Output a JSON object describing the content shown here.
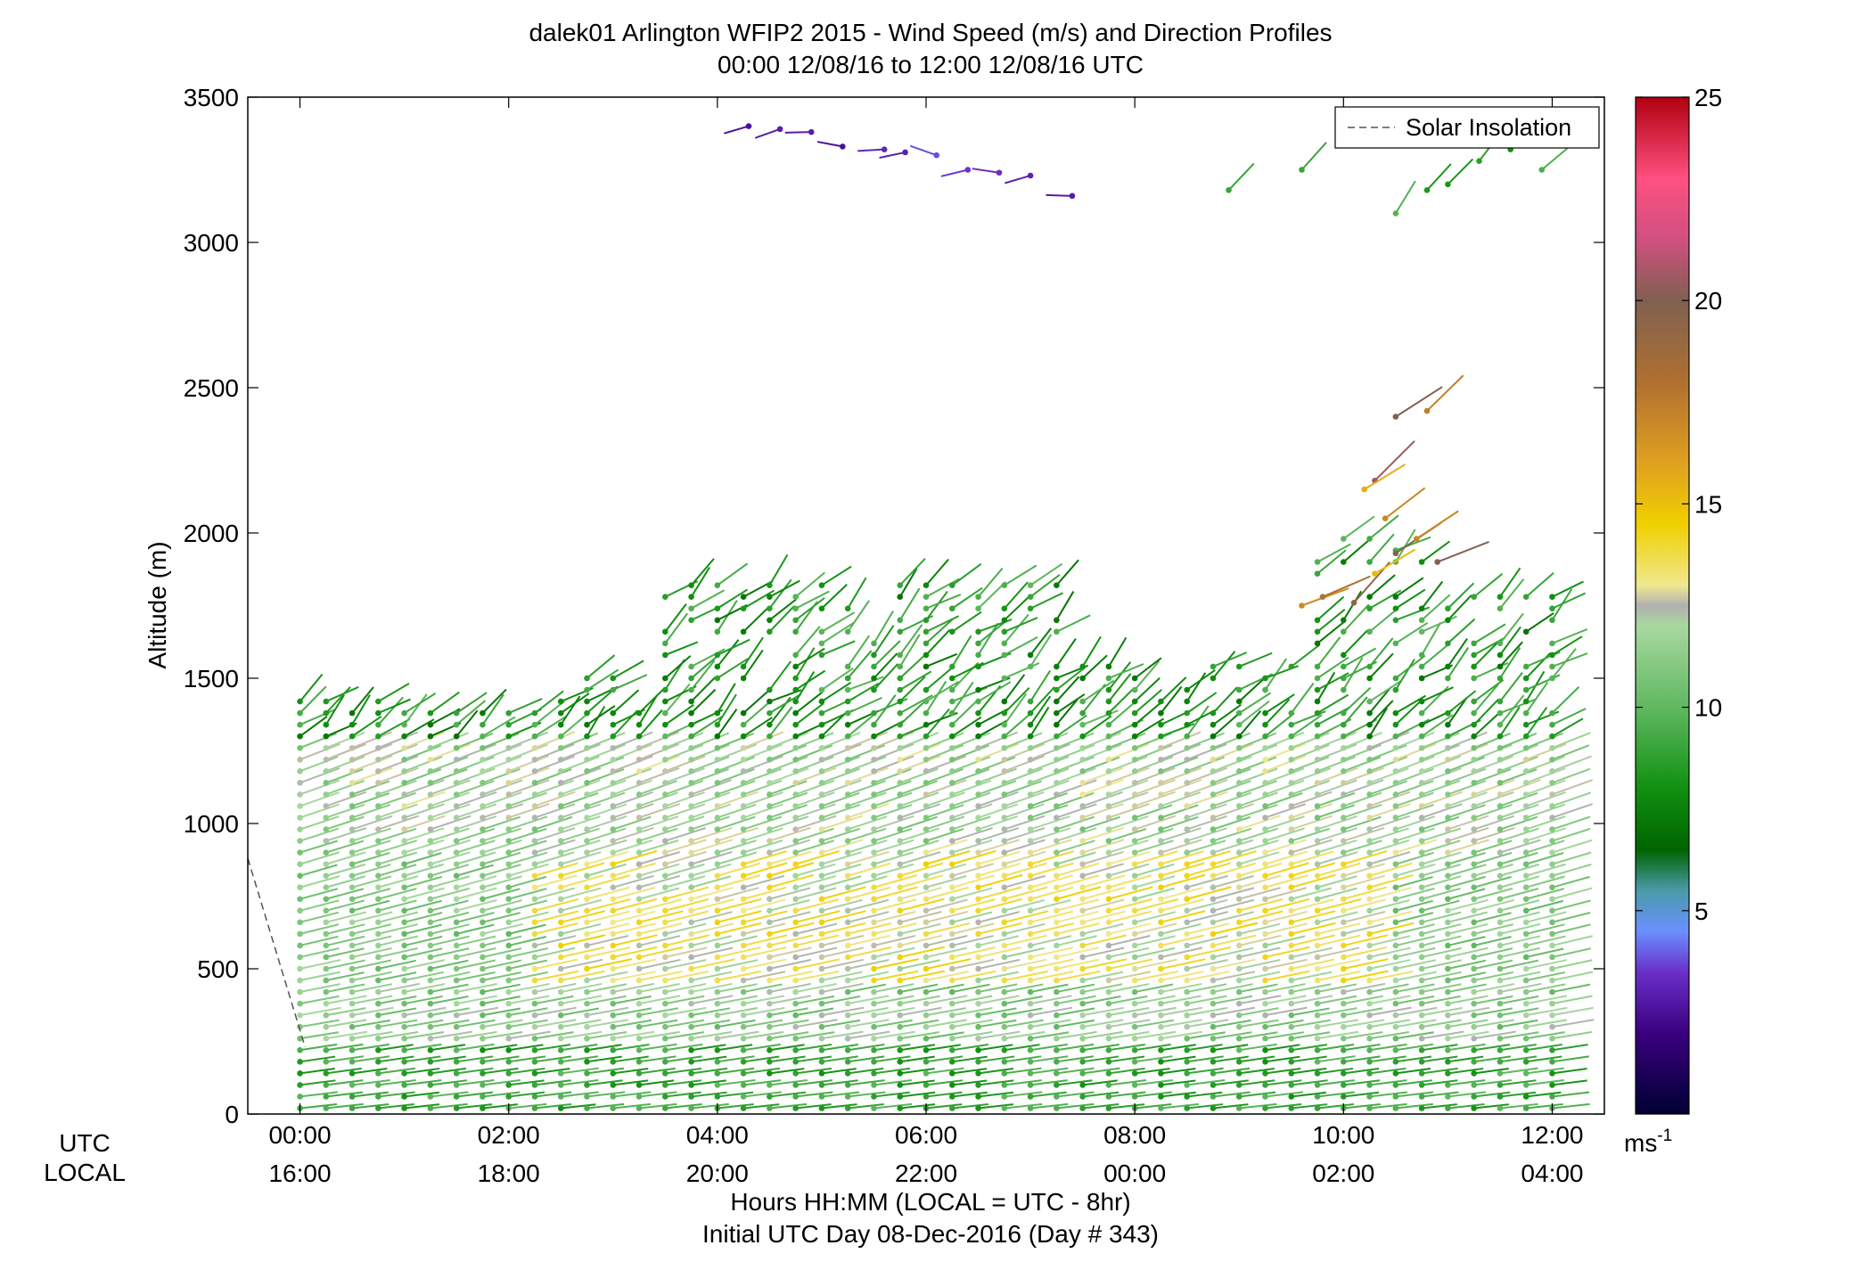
{
  "chart_data": {
    "type": "scatter",
    "title": "dalek01 Arlington WFIP2 2015 - Wind Speed (m/s) and Direction Profiles",
    "subtitle": "00:00 12/08/16 to 12:00 12/08/16  UTC",
    "ylabel": "Altitude (m)",
    "xlabel": "Hours HH:MM  (LOCAL = UTC - 8hr)",
    "xlabel2": "Initial UTC Day 08-Dec-2016 (Day # 343)",
    "xlim": [
      -0.5,
      12.5
    ],
    "ylim": [
      0,
      3500
    ],
    "x_row_labels": {
      "utc": "UTC",
      "local": "LOCAL"
    },
    "x_ticks": [
      {
        "hour": 0,
        "utc": "00:00",
        "local": "16:00"
      },
      {
        "hour": 2,
        "utc": "02:00",
        "local": "18:00"
      },
      {
        "hour": 4,
        "utc": "04:00",
        "local": "20:00"
      },
      {
        "hour": 6,
        "utc": "06:00",
        "local": "22:00"
      },
      {
        "hour": 8,
        "utc": "08:00",
        "local": "00:00"
      },
      {
        "hour": 10,
        "utc": "10:00",
        "local": "02:00"
      },
      {
        "hour": 12,
        "utc": "12:00",
        "local": "04:00"
      }
    ],
    "y_ticks": [
      0,
      500,
      1000,
      1500,
      2000,
      2500,
      3000,
      3500
    ],
    "legend": {
      "position": "top-right",
      "entries": [
        "Solar Insolation"
      ]
    },
    "solar_insolation": {
      "x": [
        -0.5,
        0.05
      ],
      "y": [
        880,
        230
      ]
    },
    "colorbar": {
      "range": [
        0,
        25
      ],
      "ticks": [
        5,
        10,
        15,
        20,
        25
      ],
      "unit": "ms",
      "unit_exp": "-1",
      "stops": [
        [
          0,
          "#000033"
        ],
        [
          2,
          "#3a0080"
        ],
        [
          3.5,
          "#6a30c8"
        ],
        [
          4.5,
          "#6a90ff"
        ],
        [
          5.5,
          "#4a9aa8"
        ],
        [
          6.5,
          "#006400"
        ],
        [
          8,
          "#109010"
        ],
        [
          10,
          "#60b860"
        ],
        [
          12,
          "#a8d8a0"
        ],
        [
          12.5,
          "#b0b0b0"
        ],
        [
          13,
          "#f0e890"
        ],
        [
          14.5,
          "#f0d000"
        ],
        [
          16,
          "#e0a020"
        ],
        [
          18,
          "#b07030"
        ],
        [
          20,
          "#806050"
        ],
        [
          21.5,
          "#d05080"
        ],
        [
          23,
          "#ff5080"
        ],
        [
          25,
          "#b00010"
        ]
      ]
    },
    "profiles_summary": [
      {
        "altitude_range": [
          0,
          500
        ],
        "speed_ms": 9,
        "color": "#109010"
      },
      {
        "altitude_range": [
          500,
          1000
        ],
        "speed_ms": 13,
        "color": "#f0d000"
      },
      {
        "altitude_range": [
          1000,
          1400
        ],
        "speed_ms": 11,
        "color": "#a8d8a0"
      },
      {
        "altitude_range": [
          1400,
          1900
        ],
        "speed_ms": 8,
        "color": "#109010"
      },
      {
        "altitude_range": [
          1700,
          2200
        ],
        "speed_ms": 18,
        "color": "#b07030"
      },
      {
        "altitude_range": [
          3100,
          3450
        ],
        "speed_ms": 2,
        "color": "#3a0080"
      }
    ]
  }
}
